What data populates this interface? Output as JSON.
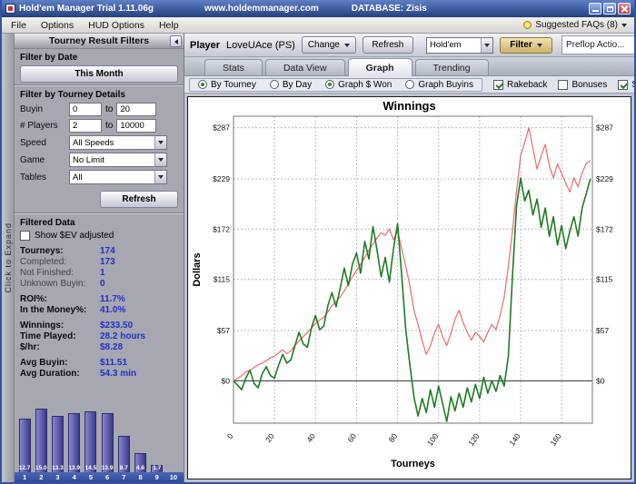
{
  "titlebar": {
    "title": "Hold'em Manager Trial 1.11.06g",
    "site": "www.holdemmanager.com",
    "database": "DATABASE: Zisis"
  },
  "menubar": {
    "items": [
      "File",
      "Options",
      "HUD Options",
      "Help"
    ],
    "faq_label": "Suggested FAQs (8)"
  },
  "sidebar": {
    "expand_label": "Click to Expand",
    "header": "Tourney Result Filters",
    "date": {
      "heading": "Filter by Date",
      "this_month": "This Month"
    },
    "details": {
      "heading": "Filter by Tourney Details",
      "buyin": {
        "label": "Buyin",
        "from": "0",
        "to_word": "to",
        "to": "20"
      },
      "players": {
        "label": "# Players",
        "from": "2",
        "to_word": "to",
        "to": "10000"
      },
      "speed": {
        "label": "Speed",
        "value": "All Speeds"
      },
      "game": {
        "label": "Game",
        "value": "No Limit"
      },
      "tables": {
        "label": "Tables",
        "value": "All"
      },
      "refresh": "Refresh"
    },
    "filtered": {
      "heading": "Filtered Data",
      "ev_label": "Show $EV adjusted",
      "stats": [
        {
          "label": "Tourneys:",
          "value": "174"
        },
        {
          "label": "Completed:",
          "value": "173"
        },
        {
          "label": "Not Finished:",
          "value": "1"
        },
        {
          "label": "Unknown Buyin:",
          "value": "0"
        },
        {
          "label": "ROI%:",
          "value": "11.7%"
        },
        {
          "label": "In the Money%:",
          "value": "41.0%"
        },
        {
          "label": "Winnings:",
          "value": "$233.50"
        },
        {
          "label": "Time Played:",
          "value": "28.2 hours"
        },
        {
          "label": "$/hr:",
          "value": "$8.28"
        },
        {
          "label": "Avg Buyin:",
          "value": "$11.51"
        },
        {
          "label": "Avg Duration:",
          "value": "54.3 min"
        }
      ]
    },
    "histogram": {
      "values": [
        12.7,
        15.0,
        13.3,
        13.9,
        14.5,
        13.9,
        8.7,
        4.6,
        1.7,
        0
      ],
      "axis_labels": [
        "1",
        "2",
        "3",
        "4",
        "5",
        "6",
        "7",
        "8",
        "9",
        "10"
      ]
    }
  },
  "playerbar": {
    "player_label": "Player",
    "player_name": "LoveUAce (PS)",
    "change_button": "Change",
    "refresh_button": "Refresh",
    "game_select": "Hold'em",
    "filter_button": "Filter",
    "overlay_panel": "Preflop Actio..."
  },
  "tabs": [
    {
      "label": "Stats"
    },
    {
      "label": "Data View"
    },
    {
      "label": "Graph"
    },
    {
      "label": "Trending"
    }
  ],
  "options_row": {
    "radios": [
      {
        "label": "By Tourney",
        "selected": true
      },
      {
        "label": "By Day",
        "selected": false
      },
      {
        "label": "Graph $ Won",
        "selected": true
      },
      {
        "label": "Graph Buyins",
        "selected": false
      }
    ],
    "checkboxes": [
      {
        "label": "Rakeback",
        "checked": true
      },
      {
        "label": "Bonuses",
        "checked": false
      },
      {
        "label": "Show Luck Adjusted",
        "checked": true
      }
    ]
  },
  "chart_data": {
    "type": "line",
    "title": "Winnings",
    "xlabel": "Tourneys",
    "ylabel": "Dollars",
    "xlim": [
      0,
      175
    ],
    "ylim": [
      -48,
      300
    ],
    "xticks": [
      0,
      20,
      40,
      60,
      80,
      100,
      120,
      140,
      160
    ],
    "yticks": [
      0,
      57,
      115,
      172,
      229,
      287
    ],
    "ytick_labels": [
      "$0",
      "$57",
      "$115",
      "$172",
      "$229",
      "$287"
    ],
    "grid": true,
    "legend": "none",
    "series": [
      {
        "name": "luck-adjusted-red",
        "color": "#ef6a6a",
        "width": 1.2,
        "points": [
          [
            0,
            0
          ],
          [
            2,
            3
          ],
          [
            4,
            6
          ],
          [
            6,
            10
          ],
          [
            8,
            12
          ],
          [
            10,
            15
          ],
          [
            12,
            18
          ],
          [
            14,
            20
          ],
          [
            16,
            23
          ],
          [
            18,
            26
          ],
          [
            20,
            28
          ],
          [
            22,
            32
          ],
          [
            24,
            35
          ],
          [
            26,
            31
          ],
          [
            28,
            34
          ],
          [
            30,
            40
          ],
          [
            32,
            45
          ],
          [
            34,
            50
          ],
          [
            36,
            55
          ],
          [
            38,
            60
          ],
          [
            40,
            65
          ],
          [
            42,
            69
          ],
          [
            44,
            72
          ],
          [
            46,
            78
          ],
          [
            48,
            85
          ],
          [
            50,
            90
          ],
          [
            52,
            95
          ],
          [
            54,
            102
          ],
          [
            56,
            110
          ],
          [
            58,
            118
          ],
          [
            60,
            125
          ],
          [
            62,
            132
          ],
          [
            64,
            140
          ],
          [
            66,
            148
          ],
          [
            68,
            155
          ],
          [
            70,
            162
          ],
          [
            72,
            168
          ],
          [
            74,
            165
          ],
          [
            76,
            172
          ],
          [
            78,
            160
          ],
          [
            80,
            170
          ],
          [
            82,
            150
          ],
          [
            84,
            130
          ],
          [
            86,
            108
          ],
          [
            88,
            80
          ],
          [
            90,
            64
          ],
          [
            92,
            45
          ],
          [
            94,
            30
          ],
          [
            96,
            40
          ],
          [
            98,
            54
          ],
          [
            100,
            64
          ],
          [
            102,
            50
          ],
          [
            104,
            40
          ],
          [
            106,
            54
          ],
          [
            108,
            70
          ],
          [
            110,
            80
          ],
          [
            112,
            66
          ],
          [
            114,
            55
          ],
          [
            116,
            46
          ],
          [
            118,
            55
          ],
          [
            120,
            50
          ],
          [
            122,
            44
          ],
          [
            124,
            55
          ],
          [
            126,
            64
          ],
          [
            128,
            58
          ],
          [
            130,
            74
          ],
          [
            132,
            95
          ],
          [
            134,
            130
          ],
          [
            136,
            170
          ],
          [
            138,
            215
          ],
          [
            140,
            255
          ],
          [
            142,
            270
          ],
          [
            144,
            287
          ],
          [
            146,
            264
          ],
          [
            148,
            240
          ],
          [
            150,
            255
          ],
          [
            152,
            268
          ],
          [
            154,
            244
          ],
          [
            156,
            230
          ],
          [
            158,
            246
          ],
          [
            160,
            235
          ],
          [
            162,
            224
          ],
          [
            164,
            214
          ],
          [
            166,
            230
          ],
          [
            168,
            220
          ],
          [
            170,
            236
          ],
          [
            172,
            246
          ],
          [
            174,
            250
          ]
        ]
      },
      {
        "name": "winnings-green",
        "color": "#1e7d22",
        "width": 1.6,
        "points": [
          [
            0,
            0
          ],
          [
            2,
            -5
          ],
          [
            4,
            -10
          ],
          [
            6,
            3
          ],
          [
            8,
            12
          ],
          [
            10,
            -3
          ],
          [
            12,
            -8
          ],
          [
            14,
            8
          ],
          [
            16,
            16
          ],
          [
            18,
            6
          ],
          [
            20,
            3
          ],
          [
            22,
            18
          ],
          [
            24,
            30
          ],
          [
            26,
            20
          ],
          [
            28,
            24
          ],
          [
            30,
            40
          ],
          [
            32,
            55
          ],
          [
            34,
            42
          ],
          [
            36,
            38
          ],
          [
            38,
            60
          ],
          [
            40,
            74
          ],
          [
            42,
            58
          ],
          [
            44,
            62
          ],
          [
            46,
            85
          ],
          [
            48,
            100
          ],
          [
            50,
            84
          ],
          [
            52,
            105
          ],
          [
            54,
            128
          ],
          [
            56,
            108
          ],
          [
            58,
            132
          ],
          [
            60,
            145
          ],
          [
            62,
            122
          ],
          [
            64,
            158
          ],
          [
            66,
            138
          ],
          [
            68,
            175
          ],
          [
            70,
            148
          ],
          [
            72,
            118
          ],
          [
            74,
            140
          ],
          [
            76,
            112
          ],
          [
            78,
            150
          ],
          [
            80,
            178
          ],
          [
            82,
            120
          ],
          [
            84,
            58
          ],
          [
            86,
            18
          ],
          [
            88,
            -18
          ],
          [
            90,
            -40
          ],
          [
            92,
            -20
          ],
          [
            94,
            -36
          ],
          [
            96,
            -10
          ],
          [
            98,
            -30
          ],
          [
            100,
            -6
          ],
          [
            102,
            -26
          ],
          [
            104,
            -46
          ],
          [
            106,
            -18
          ],
          [
            108,
            -34
          ],
          [
            110,
            -14
          ],
          [
            112,
            -30
          ],
          [
            114,
            -8
          ],
          [
            116,
            -24
          ],
          [
            118,
            -4
          ],
          [
            120,
            -20
          ],
          [
            122,
            4
          ],
          [
            124,
            -14
          ],
          [
            126,
            0
          ],
          [
            128,
            -12
          ],
          [
            130,
            6
          ],
          [
            132,
            -6
          ],
          [
            134,
            28
          ],
          [
            136,
            118
          ],
          [
            138,
            198
          ],
          [
            140,
            230
          ],
          [
            142,
            204
          ],
          [
            144,
            216
          ],
          [
            146,
            188
          ],
          [
            148,
            206
          ],
          [
            150,
            174
          ],
          [
            152,
            196
          ],
          [
            154,
            164
          ],
          [
            156,
            186
          ],
          [
            158,
            154
          ],
          [
            160,
            176
          ],
          [
            162,
            150
          ],
          [
            164,
            170
          ],
          [
            166,
            186
          ],
          [
            168,
            164
          ],
          [
            170,
            196
          ],
          [
            172,
            212
          ],
          [
            174,
            229
          ]
        ]
      }
    ]
  }
}
